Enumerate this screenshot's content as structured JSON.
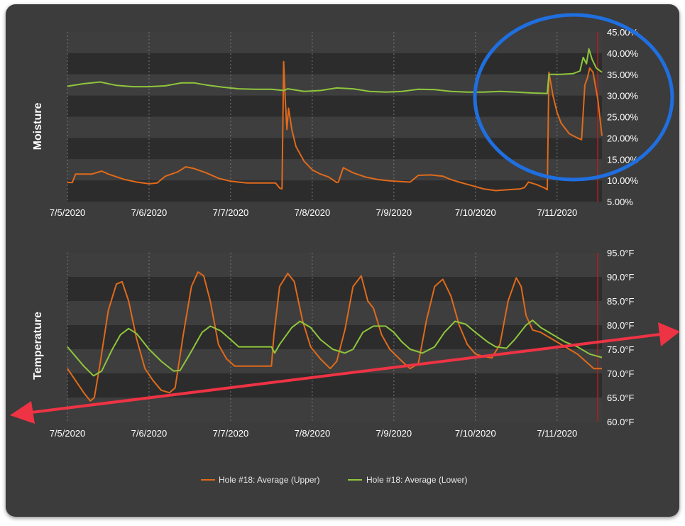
{
  "chart_data": [
    {
      "type": "line",
      "ylabel": "Moisture",
      "x_ticks": [
        "7/5/2020",
        "7/6/2020",
        "7/7/2020",
        "7/8/2020",
        "7/9/2020",
        "7/10/2020",
        "7/11/2020"
      ],
      "y_ticks": [
        "5.00%",
        "10.00%",
        "15.00%",
        "20.00%",
        "25.00%",
        "30.00%",
        "35.00%",
        "40.00%",
        "45.00%"
      ],
      "ylim": [
        5,
        45
      ],
      "xlim_days": [
        0,
        6.55
      ],
      "series": [
        {
          "name": "Hole #18: Average (Upper)",
          "color": "#e06a1a",
          "points": [
            [
              0,
              9.5
            ],
            [
              0.06,
              9.5
            ],
            [
              0.1,
              11.5
            ],
            [
              0.3,
              11.5
            ],
            [
              0.42,
              12.2
            ],
            [
              0.5,
              11.5
            ],
            [
              0.7,
              10.2
            ],
            [
              0.85,
              9.6
            ],
            [
              1.0,
              9.2
            ],
            [
              1.1,
              9.4
            ],
            [
              1.2,
              11
            ],
            [
              1.35,
              12
            ],
            [
              1.45,
              13.2
            ],
            [
              1.55,
              12.8
            ],
            [
              1.7,
              11.8
            ],
            [
              1.85,
              10.5
            ],
            [
              2.0,
              9.8
            ],
            [
              2.2,
              9.4
            ],
            [
              2.4,
              9.4
            ],
            [
              2.55,
              9.4
            ],
            [
              2.6,
              8.2
            ],
            [
              2.63,
              8.0
            ],
            [
              2.65,
              38
            ],
            [
              2.67,
              29
            ],
            [
              2.69,
              22
            ],
            [
              2.71,
              27
            ],
            [
              2.75,
              22
            ],
            [
              2.8,
              18
            ],
            [
              2.9,
              14.5
            ],
            [
              3.0,
              12.5
            ],
            [
              3.1,
              11.5
            ],
            [
              3.2,
              10.8
            ],
            [
              3.3,
              9.5
            ],
            [
              3.32,
              9.6
            ],
            [
              3.38,
              13
            ],
            [
              3.5,
              11.8
            ],
            [
              3.65,
              10.8
            ],
            [
              3.8,
              10.2
            ],
            [
              3.95,
              9.9
            ],
            [
              4.1,
              9.7
            ],
            [
              4.2,
              9.6
            ],
            [
              4.3,
              11.2
            ],
            [
              4.45,
              11.3
            ],
            [
              4.6,
              11
            ],
            [
              4.7,
              10.2
            ],
            [
              4.8,
              9.6
            ],
            [
              4.95,
              8.8
            ],
            [
              5.1,
              8.0
            ],
            [
              5.25,
              7.6
            ],
            [
              5.4,
              7.8
            ],
            [
              5.55,
              8.0
            ],
            [
              5.6,
              8.3
            ],
            [
              5.65,
              9.6
            ],
            [
              5.75,
              9.0
            ],
            [
              5.85,
              8.2
            ],
            [
              5.88,
              7.8
            ],
            [
              5.9,
              35.5
            ],
            [
              5.95,
              30
            ],
            [
              6.0,
              26
            ],
            [
              6.05,
              23.5
            ],
            [
              6.15,
              21
            ],
            [
              6.25,
              20
            ],
            [
              6.3,
              19.6
            ],
            [
              6.32,
              26
            ],
            [
              6.34,
              32.5
            ],
            [
              6.37,
              34
            ],
            [
              6.4,
              36.5
            ],
            [
              6.44,
              35.5
            ],
            [
              6.5,
              29
            ],
            [
              6.55,
              20.5
            ]
          ]
        },
        {
          "name": "Hole #18: Average (Lower)",
          "color": "#8fc63c",
          "points": [
            [
              0,
              32.2
            ],
            [
              0.2,
              32.8
            ],
            [
              0.4,
              33.2
            ],
            [
              0.6,
              32.4
            ],
            [
              0.8,
              32.1
            ],
            [
              1.0,
              32.1
            ],
            [
              1.2,
              32.3
            ],
            [
              1.4,
              33.0
            ],
            [
              1.55,
              33.0
            ],
            [
              1.7,
              32.5
            ],
            [
              1.9,
              32.0
            ],
            [
              2.1,
              31.6
            ],
            [
              2.3,
              31.5
            ],
            [
              2.5,
              31.5
            ],
            [
              2.65,
              31.2
            ],
            [
              2.7,
              31.6
            ],
            [
              2.8,
              31.3
            ],
            [
              2.9,
              31.0
            ],
            [
              3.1,
              31.2
            ],
            [
              3.3,
              31.8
            ],
            [
              3.5,
              31.6
            ],
            [
              3.7,
              31.0
            ],
            [
              3.9,
              30.8
            ],
            [
              4.1,
              31.0
            ],
            [
              4.3,
              31.5
            ],
            [
              4.5,
              31.4
            ],
            [
              4.7,
              31.0
            ],
            [
              4.9,
              30.8
            ],
            [
              5.1,
              30.8
            ],
            [
              5.3,
              31.0
            ],
            [
              5.5,
              30.8
            ],
            [
              5.7,
              30.6
            ],
            [
              5.88,
              30.5
            ],
            [
              5.9,
              35.0
            ],
            [
              6.05,
              35.0
            ],
            [
              6.2,
              35.2
            ],
            [
              6.28,
              35.8
            ],
            [
              6.32,
              39
            ],
            [
              6.36,
              37.5
            ],
            [
              6.39,
              41
            ],
            [
              6.43,
              38.5
            ],
            [
              6.48,
              36.5
            ],
            [
              6.55,
              35.5
            ]
          ]
        }
      ]
    },
    {
      "type": "line",
      "ylabel": "Temperature",
      "x_ticks": [
        "7/5/2020",
        "7/6/2020",
        "7/7/2020",
        "7/8/2020",
        "7/9/2020",
        "7/10/2020",
        "7/11/2020"
      ],
      "y_ticks": [
        "60.0°F",
        "65.0°F",
        "70.0°F",
        "75.0°F",
        "80.0°F",
        "85.0°F",
        "90.0°F",
        "95.0°F"
      ],
      "ylim": [
        60,
        95
      ],
      "xlim_days": [
        0,
        6.55
      ],
      "series": [
        {
          "name": "Hole #18: Average (Upper)",
          "color": "#e06a1a",
          "points": [
            [
              0,
              71
            ],
            [
              0.1,
              68.5
            ],
            [
              0.2,
              66
            ],
            [
              0.28,
              64.3
            ],
            [
              0.33,
              65
            ],
            [
              0.4,
              72
            ],
            [
              0.5,
              83
            ],
            [
              0.6,
              88.5
            ],
            [
              0.67,
              89
            ],
            [
              0.75,
              85
            ],
            [
              0.85,
              77
            ],
            [
              0.95,
              71
            ],
            [
              1.05,
              68.5
            ],
            [
              1.15,
              66.5
            ],
            [
              1.25,
              66
            ],
            [
              1.32,
              67
            ],
            [
              1.42,
              78
            ],
            [
              1.52,
              88
            ],
            [
              1.6,
              91
            ],
            [
              1.67,
              90.2
            ],
            [
              1.75,
              85
            ],
            [
              1.85,
              76
            ],
            [
              1.95,
              73
            ],
            [
              2.05,
              71.5
            ],
            [
              2.5,
              71.5
            ],
            [
              2.53,
              78
            ],
            [
              2.6,
              88
            ],
            [
              2.7,
              90.7
            ],
            [
              2.78,
              89
            ],
            [
              2.88,
              81
            ],
            [
              2.98,
              75.5
            ],
            [
              3.1,
              73
            ],
            [
              3.22,
              71
            ],
            [
              3.3,
              72.5
            ],
            [
              3.4,
              79
            ],
            [
              3.5,
              88
            ],
            [
              3.6,
              90.2
            ],
            [
              3.68,
              85
            ],
            [
              3.75,
              83.5
            ],
            [
              3.85,
              78
            ],
            [
              3.95,
              75
            ],
            [
              4.1,
              72.5
            ],
            [
              4.2,
              71
            ],
            [
              4.3,
              72
            ],
            [
              4.4,
              81
            ],
            [
              4.5,
              88
            ],
            [
              4.6,
              89.5
            ],
            [
              4.7,
              86
            ],
            [
              4.8,
              80
            ],
            [
              4.9,
              76
            ],
            [
              5.0,
              74
            ],
            [
              5.1,
              73.5
            ],
            [
              5.2,
              73.2
            ],
            [
              5.3,
              76
            ],
            [
              5.4,
              85
            ],
            [
              5.5,
              89.8
            ],
            [
              5.56,
              88
            ],
            [
              5.62,
              82
            ],
            [
              5.7,
              79
            ],
            [
              5.8,
              78.5
            ],
            [
              5.95,
              77
            ],
            [
              6.1,
              75.5
            ],
            [
              6.25,
              74
            ],
            [
              6.35,
              72.5
            ],
            [
              6.45,
              71
            ],
            [
              6.55,
              71
            ]
          ]
        },
        {
          "name": "Hole #18: Average (Lower)",
          "color": "#8fc63c",
          "points": [
            [
              0,
              75.5
            ],
            [
              0.1,
              73.5
            ],
            [
              0.2,
              71.5
            ],
            [
              0.32,
              69.5
            ],
            [
              0.42,
              70.5
            ],
            [
              0.55,
              75
            ],
            [
              0.65,
              78
            ],
            [
              0.75,
              79.3
            ],
            [
              0.85,
              78.2
            ],
            [
              1.0,
              75
            ],
            [
              1.15,
              72.5
            ],
            [
              1.3,
              70.5
            ],
            [
              1.38,
              70.6
            ],
            [
              1.5,
              74
            ],
            [
              1.65,
              78.5
            ],
            [
              1.75,
              79.8
            ],
            [
              1.88,
              78.8
            ],
            [
              2.0,
              77
            ],
            [
              2.1,
              75.5
            ],
            [
              2.5,
              75.5
            ],
            [
              2.54,
              74.2
            ],
            [
              2.6,
              76
            ],
            [
              2.75,
              79.5
            ],
            [
              2.85,
              80.8
            ],
            [
              2.98,
              79.5
            ],
            [
              3.1,
              77
            ],
            [
              3.25,
              75
            ],
            [
              3.4,
              74.2
            ],
            [
              3.5,
              75
            ],
            [
              3.62,
              78.5
            ],
            [
              3.75,
              79.8
            ],
            [
              3.9,
              79.8
            ],
            [
              4.0,
              78.5
            ],
            [
              4.1,
              76.5
            ],
            [
              4.2,
              75
            ],
            [
              4.35,
              74.2
            ],
            [
              4.5,
              75.5
            ],
            [
              4.62,
              78.5
            ],
            [
              4.75,
              80.8
            ],
            [
              4.88,
              80.2
            ],
            [
              5.0,
              78.5
            ],
            [
              5.15,
              76.5
            ],
            [
              5.25,
              75.5
            ],
            [
              5.38,
              75.2
            ],
            [
              5.48,
              77
            ],
            [
              5.62,
              80
            ],
            [
              5.7,
              81
            ],
            [
              5.8,
              79.5
            ],
            [
              5.95,
              78
            ],
            [
              6.1,
              76.5
            ],
            [
              6.25,
              75.5
            ],
            [
              6.4,
              74
            ],
            [
              6.55,
              73.3
            ]
          ]
        }
      ]
    }
  ],
  "legend": [
    {
      "name": "Hole #18: Average (Upper)",
      "color": "#e06a1a"
    },
    {
      "name": "Hole #18: Average (Lower)",
      "color": "#8fc63c"
    }
  ],
  "colors": {
    "panel": "#3c3c3c",
    "band_light": "#3e3e3e",
    "band_dark": "#2c2c2c",
    "grid": "#777777",
    "cursor_line": "#b02020",
    "annotation_circle": "#1f6fe0",
    "annotation_arrow": "#ee3344"
  }
}
